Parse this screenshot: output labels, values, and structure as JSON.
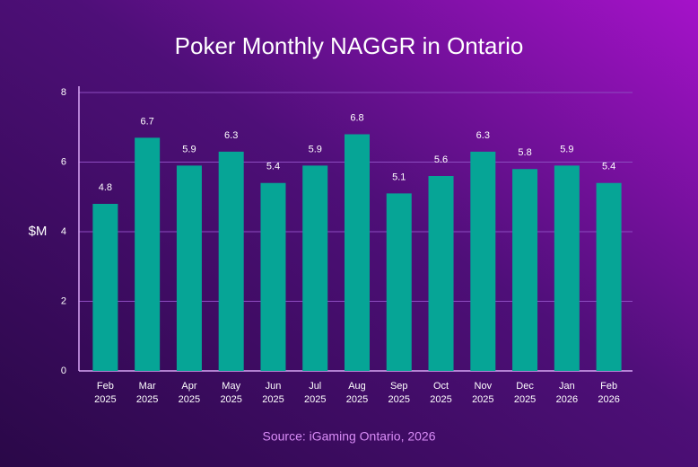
{
  "chart_data": {
    "type": "bar",
    "title": "Poker Monthly NAGGR in Ontario",
    "y_label": "$M",
    "source": "Source: iGaming Ontario, 2026",
    "categories": [
      [
        "Feb",
        "2025"
      ],
      [
        "Mar",
        "2025"
      ],
      [
        "Apr",
        "2025"
      ],
      [
        "May",
        "2025"
      ],
      [
        "Jun",
        "2025"
      ],
      [
        "Jul",
        "2025"
      ],
      [
        "Aug",
        "2025"
      ],
      [
        "Sep",
        "2025"
      ],
      [
        "Oct",
        "2025"
      ],
      [
        "Nov",
        "2025"
      ],
      [
        "Dec",
        "2025"
      ],
      [
        "Jan",
        "2026"
      ],
      [
        "Feb",
        "2026"
      ]
    ],
    "values": [
      4.8,
      6.7,
      5.9,
      6.3,
      5.4,
      5.9,
      6.8,
      5.1,
      5.6,
      6.3,
      5.8,
      5.9,
      5.4
    ],
    "color": "#06a596",
    "ylim": [
      0,
      8
    ],
    "yticks": [
      0,
      2,
      4,
      6,
      8
    ],
    "grid": true
  }
}
